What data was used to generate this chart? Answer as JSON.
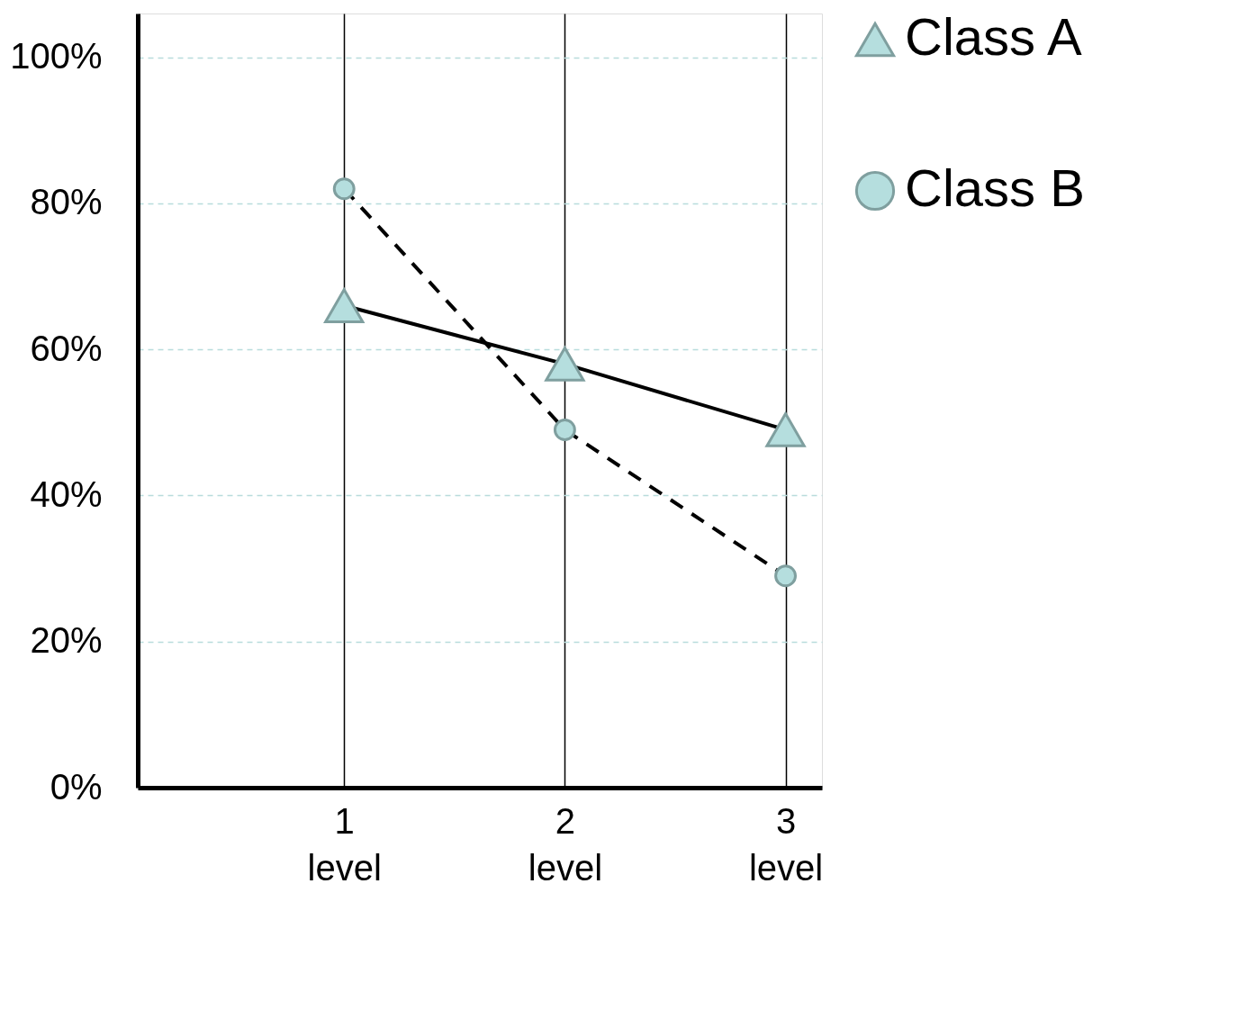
{
  "chart_data": {
    "type": "line",
    "categories": [
      "1 level",
      "2 level",
      "3 level"
    ],
    "series": [
      {
        "name": "Class A",
        "color": "#b5dede",
        "values": [
          66,
          58,
          49
        ],
        "marker": "triangle",
        "line_style": "solid"
      },
      {
        "name": "Class B",
        "color": "#b5dede",
        "values": [
          82,
          49,
          29
        ],
        "marker": "circle",
        "line_style": "dashed"
      }
    ],
    "ylim": [
      0,
      106
    ],
    "yticks": [
      {
        "value": 0,
        "label": "0%"
      },
      {
        "value": 20,
        "label": "20%"
      },
      {
        "value": 40,
        "label": "40%"
      },
      {
        "value": 60,
        "label": "60%"
      },
      {
        "value": 80,
        "label": "80%"
      },
      {
        "value": 100,
        "label": "100%"
      }
    ],
    "grid": true,
    "legend": "top right"
  }
}
